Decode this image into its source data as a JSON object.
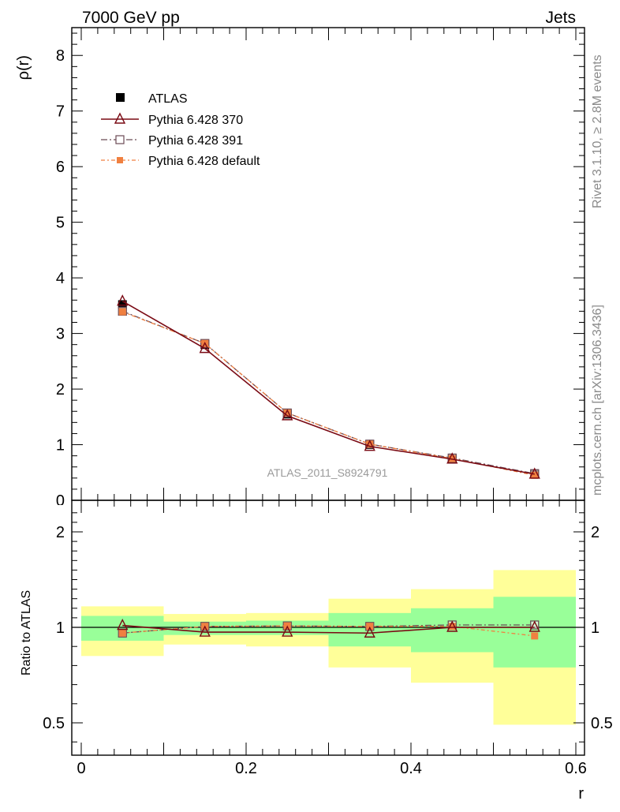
{
  "header": {
    "left": "7000 GeV pp",
    "right": "Jets"
  },
  "side_labels": {
    "rivet": "Rivet 3.1.10, ≥ 2.8M events",
    "mcplots": "mcplots.cern.ch [arXiv:1306.3436]"
  },
  "watermark": "ATLAS_2011_S8924791",
  "colors": {
    "atlas": "#000000",
    "p370": "#7a0a14",
    "p391": "#6b4a55",
    "pdefault": "#f08040",
    "band_outer": "#ffff99",
    "band_inner": "#99ff99"
  },
  "chart_data": [
    {
      "type": "line",
      "panel": "main",
      "xlabel": "r",
      "ylabel": "ρ(r)",
      "xlim": [
        0,
        0.6
      ],
      "ylim": [
        0,
        8.5
      ],
      "xticks": [
        0,
        0.2,
        0.4,
        0.6
      ],
      "xtick_labels": [
        "0",
        "0.2",
        "0.4",
        "0.6"
      ],
      "yticks": [
        0,
        1,
        2,
        3,
        4,
        5,
        6,
        7,
        8
      ],
      "ytick_labels": [
        "0",
        "1",
        "2",
        "3",
        "4",
        "5",
        "6",
        "7",
        "8"
      ],
      "legend_placement": "top-left",
      "x": [
        0.05,
        0.15,
        0.25,
        0.35,
        0.45,
        0.55
      ],
      "series": [
        {
          "key": "atlas",
          "name": "ATLAS",
          "values": [
            3.52,
            2.8,
            1.55,
            1.0,
            0.74,
            0.47
          ]
        },
        {
          "key": "p370",
          "name": "Pythia 6.428 370",
          "values": [
            3.58,
            2.73,
            1.52,
            0.97,
            0.74,
            0.47
          ]
        },
        {
          "key": "p391",
          "name": "Pythia 6.428 391",
          "values": [
            3.4,
            2.82,
            1.57,
            1.01,
            0.76,
            0.48
          ]
        },
        {
          "key": "pdefault",
          "name": "Pythia 6.428 default",
          "values": [
            3.39,
            2.82,
            1.57,
            1.01,
            0.75,
            0.45
          ]
        }
      ]
    },
    {
      "type": "line",
      "panel": "ratio",
      "ylabel": "Ratio to ATLAS",
      "xlim": [
        0,
        0.6
      ],
      "ylim": [
        0.35,
        2.3
      ],
      "yticks": [
        0.5,
        1,
        2
      ],
      "ytick_labels": [
        "0.5",
        "1",
        "2"
      ],
      "x": [
        0.05,
        0.15,
        0.25,
        0.35,
        0.45,
        0.55
      ],
      "bands": {
        "bins": [
          [
            0,
            0.1
          ],
          [
            0.1,
            0.2
          ],
          [
            0.2,
            0.3
          ],
          [
            0.3,
            0.4
          ],
          [
            0.4,
            0.5
          ],
          [
            0.5,
            0.6
          ]
        ],
        "outer": [
          [
            0.85,
            1.22
          ],
          [
            0.91,
            1.14
          ],
          [
            0.9,
            1.15
          ],
          [
            0.79,
            1.3
          ],
          [
            0.71,
            1.4
          ],
          [
            0.49,
            1.6
          ]
        ],
        "inner": [
          [
            0.93,
            1.12
          ],
          [
            0.96,
            1.06
          ],
          [
            0.96,
            1.07
          ],
          [
            0.9,
            1.15
          ],
          [
            0.87,
            1.2
          ],
          [
            0.79,
            1.32
          ]
        ]
      },
      "series": [
        {
          "key": "p370",
          "name": "Pythia 6.428 370",
          "values": [
            1.02,
            0.975,
            0.975,
            0.97,
            1.0,
            1.0
          ]
        },
        {
          "key": "p391",
          "name": "Pythia 6.428 391",
          "values": [
            0.97,
            1.01,
            1.015,
            1.01,
            1.025,
            1.025
          ]
        },
        {
          "key": "pdefault",
          "name": "Pythia 6.428 default",
          "values": [
            0.97,
            1.01,
            1.015,
            1.01,
            1.01,
            0.955
          ]
        }
      ]
    }
  ]
}
